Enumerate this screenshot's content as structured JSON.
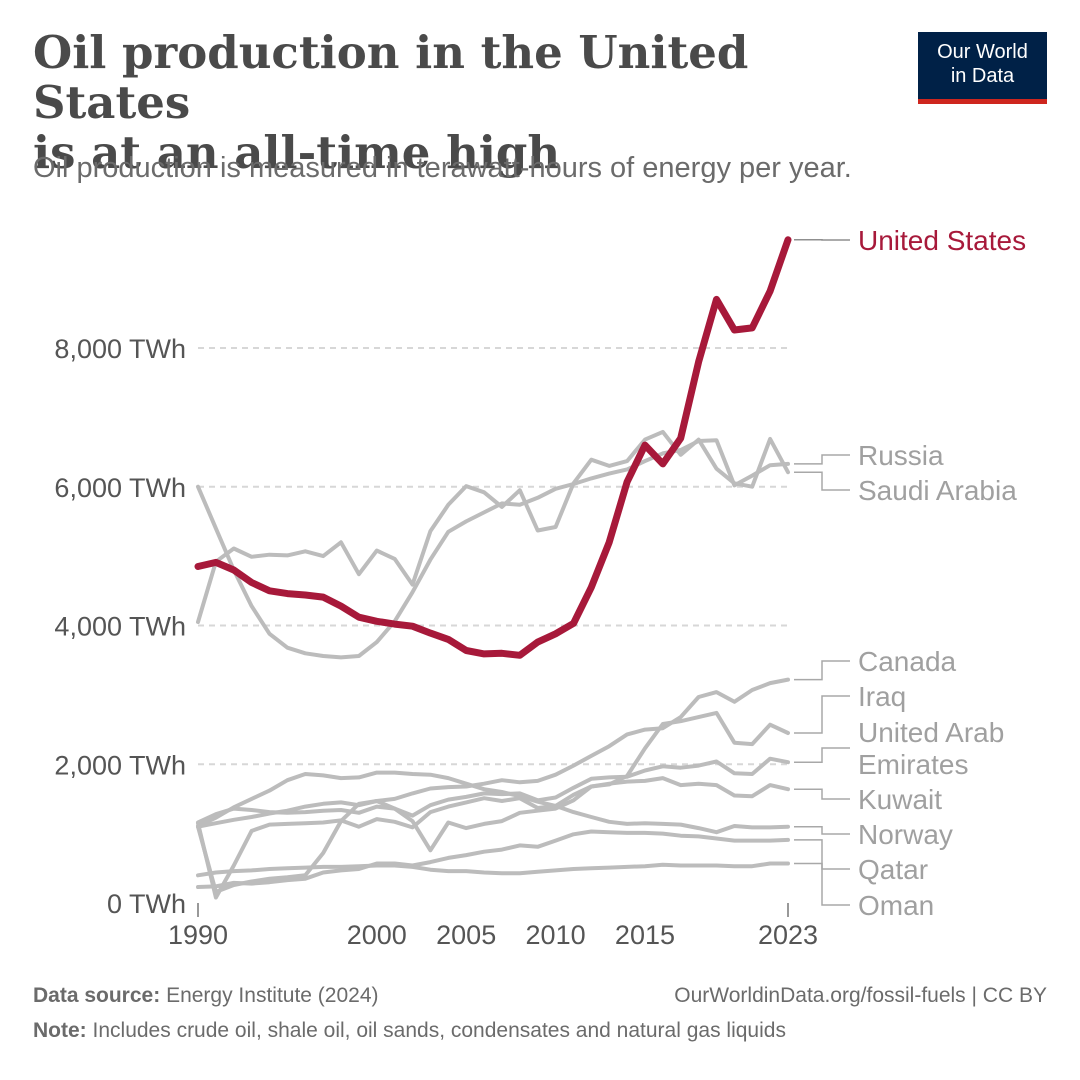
{
  "header": {
    "title_line1": "Oil production in the United States",
    "title_line2": "is at an all-time high",
    "subtitle": "Oil production is measured in terawatt-hours of energy per year.",
    "logo_line1": "Our World",
    "logo_line2": "in Data"
  },
  "footer": {
    "source_label": "Data source:",
    "source_text": "Energy Institute (2024)",
    "url_text": "OurWorldinData.org/fossil-fuels | CC BY",
    "note_label": "Note:",
    "note_text": "Includes crude oil, shale oil, oil sands, condensates and natural gas liquids"
  },
  "colors": {
    "highlight": "#a7193a",
    "others": "#bcbcbc",
    "grid": "#d7d7d7",
    "axis_text": "#555555",
    "label_text": "#a0a0a0"
  },
  "chart_data": {
    "type": "line",
    "ylim": [
      0,
      9600
    ],
    "xlim": [
      1990,
      2023
    ],
    "y_ticks": [
      0,
      2000,
      4000,
      6000,
      8000
    ],
    "y_tick_labels": [
      "0 TWh",
      "2,000 TWh",
      "4,000 TWh",
      "6,000 TWh",
      "8,000 TWh"
    ],
    "x_ticks": [
      1990,
      2000,
      2005,
      2010,
      2015,
      2023
    ],
    "x_tick_labels": [
      "1990",
      "2000",
      "2005",
      "2010",
      "2015",
      "2023"
    ],
    "grid": "horizontal dashed",
    "years": [
      1990,
      1991,
      1992,
      1993,
      1994,
      1995,
      1996,
      1997,
      1998,
      1999,
      2000,
      2001,
      2002,
      2003,
      2004,
      2005,
      2006,
      2007,
      2008,
      2009,
      2010,
      2011,
      2012,
      2013,
      2014,
      2015,
      2016,
      2017,
      2018,
      2019,
      2020,
      2021,
      2022,
      2023
    ],
    "series": [
      {
        "name": "United States",
        "highlight": true,
        "label_lines": [
          "United States"
        ],
        "values": [
          4850,
          4910,
          4800,
          4620,
          4500,
          4460,
          4440,
          4410,
          4280,
          4120,
          4060,
          4020,
          3990,
          3890,
          3800,
          3640,
          3590,
          3600,
          3570,
          3760,
          3880,
          4030,
          4550,
          5200,
          6070,
          6600,
          6330,
          6700,
          7800,
          8700,
          8260,
          8290,
          8820,
          9560
        ]
      },
      {
        "name": "Russia",
        "highlight": false,
        "label_lines": [
          "Russia"
        ],
        "values": [
          6000,
          5400,
          4800,
          4280,
          3880,
          3680,
          3600,
          3560,
          3540,
          3560,
          3760,
          4060,
          4480,
          4950,
          5350,
          5500,
          5630,
          5760,
          5740,
          5840,
          5970,
          6040,
          6120,
          6190,
          6250,
          6370,
          6480,
          6530,
          6660,
          6670,
          6020,
          6160,
          6310,
          6330
        ]
      },
      {
        "name": "Saudi Arabia",
        "highlight": false,
        "label_lines": [
          "Saudi Arabia"
        ],
        "values": [
          4050,
          4920,
          5110,
          4990,
          5020,
          5010,
          5070,
          5000,
          5200,
          4740,
          5080,
          4960,
          4590,
          5360,
          5740,
          6010,
          5920,
          5710,
          5950,
          5370,
          5420,
          6050,
          6390,
          6300,
          6370,
          6680,
          6790,
          6460,
          6680,
          6260,
          6050,
          6000,
          6690,
          6210
        ]
      },
      {
        "name": "Canada",
        "highlight": false,
        "label_lines": [
          "Canada"
        ],
        "values": [
          1100,
          1150,
          1200,
          1240,
          1290,
          1330,
          1390,
          1430,
          1450,
          1410,
          1470,
          1500,
          1580,
          1650,
          1670,
          1680,
          1720,
          1770,
          1740,
          1760,
          1850,
          1980,
          2120,
          2260,
          2430,
          2500,
          2520,
          2680,
          2970,
          3040,
          2900,
          3070,
          3170,
          3220
        ]
      },
      {
        "name": "Iraq",
        "highlight": false,
        "label_lines": [
          "Iraq"
        ],
        "values": [
          1100,
          160,
          260,
          310,
          350,
          370,
          400,
          720,
          1180,
          1430,
          1470,
          1360,
          1180,
          760,
          1160,
          1080,
          1140,
          1180,
          1300,
          1330,
          1360,
          1480,
          1680,
          1710,
          1830,
          2230,
          2580,
          2620,
          2680,
          2740,
          2310,
          2290,
          2570,
          2450
        ]
      },
      {
        "name": "United Arab Emirates",
        "highlight": false,
        "label_lines": [
          "United Arab",
          "Emirates"
        ],
        "values": [
          1160,
          1280,
          1360,
          1340,
          1310,
          1300,
          1310,
          1330,
          1340,
          1300,
          1390,
          1360,
          1260,
          1410,
          1490,
          1530,
          1580,
          1570,
          1580,
          1480,
          1520,
          1660,
          1790,
          1810,
          1820,
          1910,
          1970,
          1950,
          1980,
          2040,
          1870,
          1860,
          2080,
          2030
        ]
      },
      {
        "name": "Kuwait",
        "highlight": false,
        "label_lines": [
          "Kuwait"
        ],
        "values": [
          1150,
          80,
          540,
          1040,
          1130,
          1140,
          1150,
          1160,
          1190,
          1100,
          1210,
          1170,
          1090,
          1310,
          1390,
          1450,
          1510,
          1470,
          1510,
          1370,
          1400,
          1560,
          1680,
          1720,
          1750,
          1760,
          1800,
          1700,
          1720,
          1700,
          1550,
          1540,
          1700,
          1640
        ]
      },
      {
        "name": "Norway",
        "highlight": false,
        "label_lines": [
          "Norway"
        ],
        "values": [
          1110,
          1230,
          1380,
          1500,
          1620,
          1770,
          1860,
          1840,
          1800,
          1810,
          1880,
          1880,
          1860,
          1850,
          1800,
          1720,
          1640,
          1600,
          1540,
          1460,
          1400,
          1310,
          1240,
          1170,
          1140,
          1150,
          1140,
          1130,
          1080,
          1020,
          1110,
          1090,
          1090,
          1100
        ]
      },
      {
        "name": "Qatar",
        "highlight": false,
        "label_lines": [
          "Qatar"
        ],
        "values": [
          230,
          240,
          290,
          280,
          300,
          330,
          350,
          440,
          470,
          490,
          570,
          570,
          540,
          590,
          650,
          690,
          740,
          770,
          830,
          810,
          900,
          990,
          1030,
          1020,
          1010,
          1010,
          1000,
          970,
          960,
          930,
          900,
          900,
          900,
          910
        ]
      },
      {
        "name": "Oman",
        "highlight": false,
        "label_lines": [
          "Oman"
        ],
        "values": [
          400,
          440,
          460,
          470,
          490,
          500,
          510,
          520,
          520,
          530,
          540,
          540,
          520,
          480,
          460,
          460,
          440,
          430,
          430,
          450,
          470,
          490,
          500,
          510,
          520,
          530,
          550,
          540,
          540,
          540,
          530,
          530,
          570,
          570
        ]
      }
    ]
  }
}
